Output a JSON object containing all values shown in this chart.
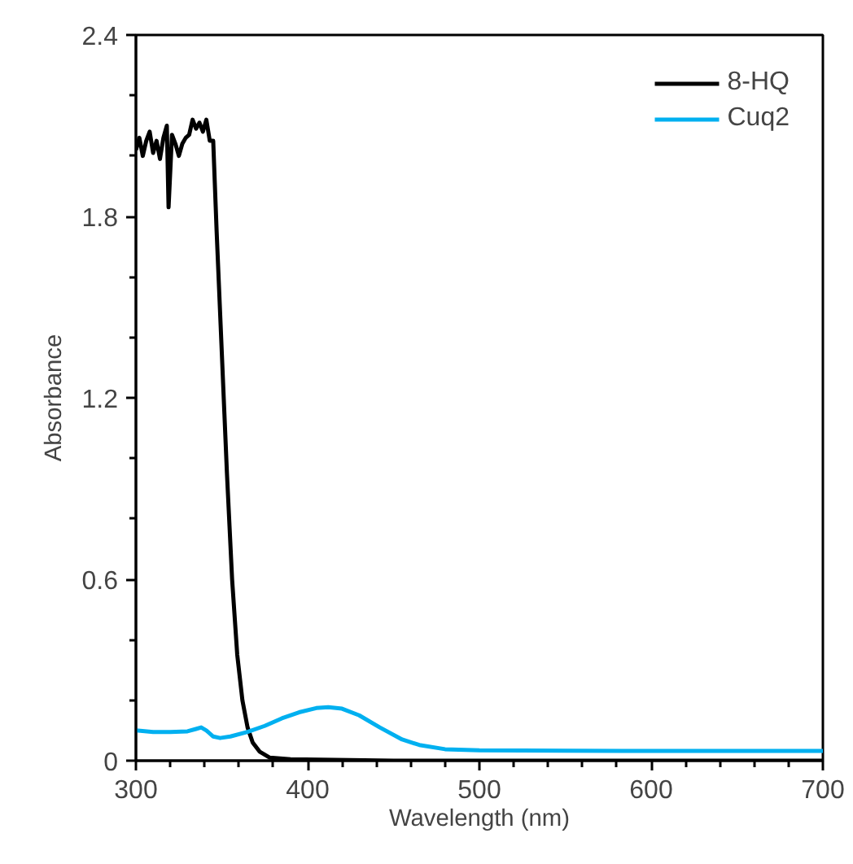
{
  "chart_data": {
    "type": "line",
    "xlabel": "Wavelength (nm)",
    "ylabel": "Absorbance",
    "xlim": [
      300,
      700
    ],
    "xticks": [
      300,
      400,
      500,
      600,
      700
    ],
    "ylim": [
      0,
      2.4
    ],
    "yticks": [
      0,
      0.6,
      1.2,
      1.8,
      2.4
    ],
    "grid": false,
    "legend": "top right",
    "marker": "none",
    "line_style": "solid",
    "series": [
      {
        "name": "8-HQ",
        "color": "#000000",
        "x": [
          300,
          302,
          304,
          306,
          308,
          310,
          312,
          314,
          316,
          318,
          319,
          321,
          323,
          325,
          327,
          329,
          331,
          333,
          335,
          337,
          339,
          341,
          343,
          345,
          347,
          350,
          353,
          356,
          359,
          362,
          365,
          368,
          372,
          378,
          390,
          450,
          700
        ],
        "values": [
          2.02,
          2.06,
          2.0,
          2.05,
          2.08,
          2.01,
          2.05,
          1.99,
          2.06,
          2.1,
          1.83,
          2.07,
          2.04,
          2.0,
          2.04,
          2.06,
          2.07,
          2.12,
          2.09,
          2.11,
          2.08,
          2.12,
          2.05,
          2.05,
          1.75,
          1.35,
          0.95,
          0.6,
          0.35,
          0.2,
          0.11,
          0.06,
          0.03,
          0.01,
          0.005,
          0.0,
          0.0
        ]
      },
      {
        "name": "Cuq2",
        "color": "#00b0f0",
        "x": [
          300,
          310,
          320,
          330,
          335,
          338,
          341,
          345,
          349,
          355,
          365,
          375,
          385,
          395,
          405,
          412,
          420,
          430,
          442,
          455,
          465,
          480,
          500,
          550,
          600,
          650,
          700
        ],
        "values": [
          0.1,
          0.095,
          0.095,
          0.097,
          0.105,
          0.11,
          0.1,
          0.08,
          0.075,
          0.08,
          0.095,
          0.115,
          0.14,
          0.16,
          0.174,
          0.177,
          0.172,
          0.15,
          0.11,
          0.07,
          0.052,
          0.038,
          0.034,
          0.033,
          0.032,
          0.032,
          0.032
        ]
      }
    ]
  }
}
